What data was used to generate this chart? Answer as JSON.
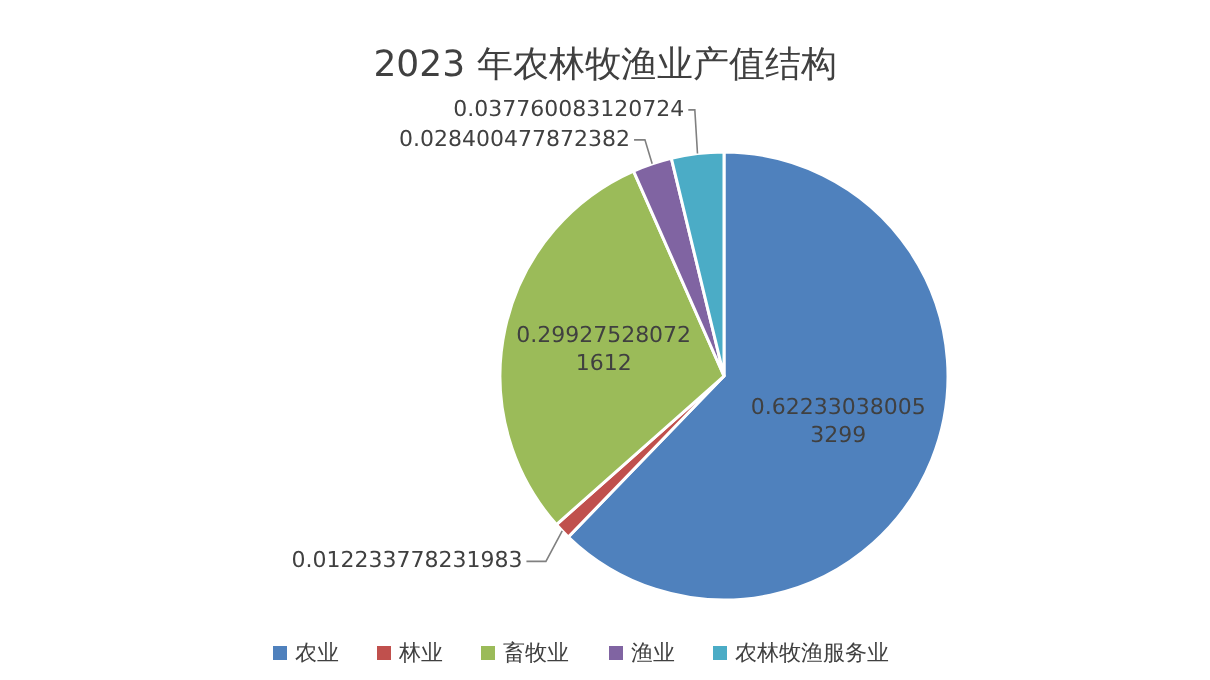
{
  "chart_data": {
    "type": "pie",
    "title": "2023 年农林牧渔业产值结构",
    "categories": [
      "农业",
      "林业",
      "畜牧业",
      "渔业",
      "农林牧渔服务业"
    ],
    "values": [
      0.622330380053299,
      0.012233778231983,
      0.299275280721612,
      0.028400477872382,
      0.037760083120724
    ],
    "colors": [
      "#4f81bd",
      "#c0504d",
      "#9bbb59",
      "#8064a2",
      "#4bacc6"
    ],
    "data_labels": true,
    "legend": "bottom"
  }
}
